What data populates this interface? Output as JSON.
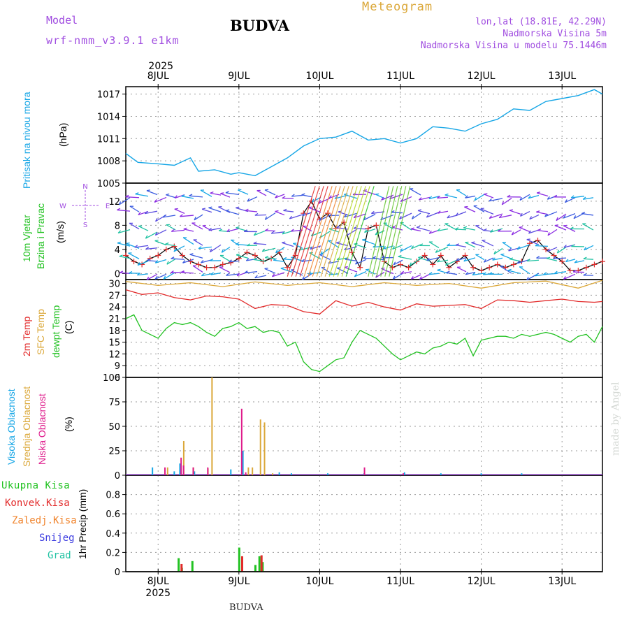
{
  "header": {
    "model_label": "Model",
    "model_name": "wrf-nmm_v3.9.1 e1km",
    "station": "BUDVA",
    "title": "Meteogram",
    "coords": "lon,lat (18.81E, 42.29N)",
    "elevation": "Nadmorska Visina 5m",
    "model_elevation": "Nadmorska Visina u modelu 75.1446m"
  },
  "footer": {
    "station": "BUDVA",
    "credit": "made by Angel"
  },
  "colors": {
    "pressure": "#16a6e6",
    "temp2m": "#e22a2a",
    "sfc": "#dba83a",
    "dewpt": "#22c222",
    "cloud_high": "#16a6e6",
    "cloud_mid": "#dba83a",
    "cloud_low": "#df1b8b",
    "precip_total": "#22c222",
    "precip_conv": "#e22a2a",
    "precip_frz": "#f0832b",
    "snow": "#3b3be0",
    "graupel": "#20c2a2"
  },
  "chart_data": {
    "type": "line",
    "x_axis": {
      "year": "2025",
      "tick_labels": [
        "8JUL",
        "9JUL",
        "10JUL",
        "11JUL",
        "12JUL",
        "13JUL"
      ],
      "range_days": [
        7.6,
        13.5
      ]
    },
    "panels": [
      {
        "name": "pressure",
        "labels": [
          "Pritisak na nivou mora",
          "(hPa)"
        ],
        "ylim": [
          1005,
          1018
        ],
        "yticks": [
          1005,
          1008,
          1011,
          1014,
          1017
        ],
        "series": [
          {
            "x": [
              7.6,
              7.75,
              8.0,
              8.2,
              8.4,
              8.5,
              8.7,
              8.9,
              9.0,
              9.2,
              9.4,
              9.6,
              9.8,
              10.0,
              10.2,
              10.4,
              10.6,
              10.8,
              11.0,
              11.2,
              11.4,
              11.6,
              11.8,
              12.0,
              12.2,
              12.4,
              12.6,
              12.8,
              13.0,
              13.2,
              13.4,
              13.5
            ],
            "y": [
              1009.0,
              1007.8,
              1007.6,
              1007.4,
              1008.4,
              1006.6,
              1006.8,
              1006.2,
              1006.4,
              1006.0,
              1007.2,
              1008.4,
              1010.0,
              1011.0,
              1011.2,
              1012.0,
              1010.8,
              1011.0,
              1010.4,
              1011.0,
              1012.6,
              1012.4,
              1012.0,
              1013.0,
              1013.6,
              1015.0,
              1014.8,
              1016.0,
              1016.4,
              1016.8,
              1017.6,
              1017.0
            ]
          }
        ]
      },
      {
        "name": "wind",
        "labels": [
          "10m Vjetar",
          "Brzina i Pravac",
          "(m/s)"
        ],
        "compass": [
          "N",
          "W",
          "E",
          "S"
        ],
        "ylim": [
          -1,
          15
        ],
        "yticks": [
          0,
          4,
          8,
          12
        ],
        "series": [
          {
            "x": [
              7.6,
              7.7,
              7.8,
              7.9,
              8.0,
              8.1,
              8.2,
              8.3,
              8.4,
              8.5,
              8.6,
              8.7,
              8.8,
              8.9,
              9.0,
              9.1,
              9.2,
              9.3,
              9.4,
              9.5,
              9.6,
              9.7,
              9.8,
              9.9,
              10.0,
              10.1,
              10.2,
              10.3,
              10.4,
              10.5,
              10.6,
              10.7,
              10.8,
              10.9,
              11.0,
              11.1,
              11.2,
              11.3,
              11.4,
              11.5,
              11.6,
              11.7,
              11.8,
              11.9,
              12.0,
              12.1,
              12.2,
              12.3,
              12.4,
              12.5,
              12.6,
              12.7,
              12.8,
              12.9,
              13.0,
              13.1,
              13.2,
              13.3,
              13.4,
              13.5
            ],
            "y": [
              3,
              2,
              1.5,
              2.5,
              3,
              4,
              4.5,
              3,
              2,
              1.5,
              1,
              1,
              1.5,
              1.8,
              2.5,
              3.5,
              3,
              2,
              2.5,
              3.5,
              1,
              3,
              10,
              12,
              9,
              10,
              7.5,
              8.5,
              3.5,
              1,
              7.5,
              8,
              2,
              1,
              1.5,
              1,
              2,
              3,
              1.5,
              3,
              1,
              2,
              3,
              1,
              0.5,
              1,
              1.5,
              1,
              1.5,
              2,
              5,
              5.5,
              4,
              3,
              2,
              0.5,
              0.5,
              1,
              1.5,
              2
            ]
          }
        ]
      },
      {
        "name": "temperature",
        "labels": [
          "2m Temp",
          "SFC Temp",
          "dewpt Temp",
          "(C)"
        ],
        "ylim": [
          6,
          31
        ],
        "yticks": [
          6,
          9,
          12,
          15,
          18,
          21,
          24,
          27,
          30
        ],
        "series": [
          {
            "name": "SFC Temp",
            "x": [
              7.6,
              8.0,
              8.4,
              8.8,
              9.2,
              9.6,
              10.0,
              10.4,
              10.8,
              11.2,
              11.6,
              12.0,
              12.4,
              12.8,
              13.2,
              13.5
            ],
            "y": [
              30.5,
              29.5,
              30.2,
              29.2,
              30.4,
              29.5,
              30.2,
              29.2,
              30.2,
              29.5,
              30.0,
              28.8,
              30.2,
              30.6,
              28.8,
              30.8
            ]
          },
          {
            "name": "2m Temp",
            "x": [
              7.6,
              7.8,
              8.0,
              8.2,
              8.4,
              8.6,
              8.8,
              9.0,
              9.2,
              9.4,
              9.6,
              9.8,
              10.0,
              10.2,
              10.4,
              10.6,
              10.8,
              11.0,
              11.2,
              11.4,
              11.6,
              11.8,
              12.0,
              12.2,
              12.4,
              12.6,
              12.8,
              13.0,
              13.2,
              13.4,
              13.5
            ],
            "y": [
              28.4,
              27.2,
              27.6,
              26.4,
              25.8,
              26.8,
              26.6,
              26.0,
              23.6,
              24.6,
              24.4,
              22.8,
              22.2,
              25.6,
              24.2,
              25.2,
              24.0,
              23.2,
              24.8,
              24.2,
              24.4,
              24.6,
              23.6,
              25.8,
              25.6,
              25.2,
              25.6,
              26.0,
              25.4,
              25.2,
              25.4
            ]
          },
          {
            "name": "dewpt Temp",
            "x": [
              7.6,
              7.7,
              7.8,
              7.9,
              8.0,
              8.1,
              8.2,
              8.3,
              8.4,
              8.5,
              8.6,
              8.7,
              8.8,
              8.9,
              9.0,
              9.1,
              9.2,
              9.3,
              9.4,
              9.5,
              9.6,
              9.7,
              9.8,
              9.9,
              10.0,
              10.1,
              10.2,
              10.3,
              10.4,
              10.5,
              10.6,
              10.7,
              10.8,
              10.9,
              11.0,
              11.1,
              11.2,
              11.3,
              11.4,
              11.5,
              11.6,
              11.7,
              11.8,
              11.9,
              12.0,
              12.1,
              12.2,
              12.3,
              12.4,
              12.5,
              12.6,
              12.7,
              12.8,
              12.9,
              13.0,
              13.1,
              13.2,
              13.3,
              13.4,
              13.5
            ],
            "y": [
              21,
              22,
              18,
              17,
              16,
              18.5,
              20,
              19.5,
              20,
              19,
              17.5,
              16.5,
              18.5,
              19,
              20,
              18.5,
              19,
              17.5,
              18,
              17.5,
              14,
              15,
              10,
              8,
              7.5,
              9,
              10.5,
              11,
              15,
              18,
              17,
              16,
              14,
              12,
              10.5,
              11.5,
              12.5,
              12,
              13.5,
              14,
              15,
              14.5,
              16,
              11.5,
              15.5,
              16,
              16.5,
              16.5,
              16,
              17,
              16.5,
              17,
              17.5,
              17,
              16,
              15,
              16.5,
              17,
              15,
              19
            ]
          }
        ]
      },
      {
        "name": "clouds",
        "labels": [
          "Visoka Oblacnost",
          "Srednja Oblacnost",
          "Niska Oblacnost",
          "(%)"
        ],
        "ylim": [
          0,
          100
        ],
        "yticks": [
          0,
          25,
          50,
          75,
          100
        ],
        "series": [
          {
            "name": "Visoka Oblacnost",
            "x": [
              7.93,
              8.2,
              8.27,
              8.45,
              8.9,
              9.05,
              9.5,
              9.65,
              10.1,
              10.55,
              11.05,
              11.5,
              12.0,
              12.5
            ],
            "y": [
              8,
              4,
              12,
              4,
              6,
              25,
              3,
              2,
              2,
              2,
              3,
              2,
              2,
              2
            ]
          },
          {
            "name": "Srednja Oblacnost",
            "x": [
              8.1,
              8.3,
              8.42,
              8.6,
              8.65,
              9.1,
              9.15,
              9.25,
              9.3,
              9.4
            ],
            "y": [
              8,
              35,
              8,
              7,
              100,
              8,
              8,
              57,
              54,
              2
            ]
          },
          {
            "name": "Niska Oblacnost",
            "x": [
              8.05,
              8.25,
              8.28,
              8.4,
              8.58,
              9.0,
              9.05,
              10.52,
              11.0
            ],
            "y": [
              8,
              18,
              10,
              8,
              8,
              68,
              3,
              8,
              2
            ]
          }
        ]
      },
      {
        "name": "precip",
        "labels": [
          "Ukupna Kisa",
          "Konvek.Kisa",
          "Zaledj.Kisa",
          "Snijeg",
          "Grad",
          "1hr Precip (mm)"
        ],
        "ylim": [
          0,
          1.0
        ],
        "yticks": [
          0,
          0.2,
          0.4,
          0.6,
          0.8
        ],
        "series": [
          {
            "name": "Ukupna Kisa",
            "x": [
              8.25,
              8.29,
              8.42,
              9.0,
              9.2,
              9.25,
              9.29
            ],
            "y": [
              0.14,
              0.04,
              0.11,
              0.25,
              0.07,
              0.16,
              0.1
            ]
          },
          {
            "name": "Konvek.Kisa",
            "x": [
              8.26,
              9.01,
              9.25
            ],
            "y": [
              0.08,
              0.16,
              0.17
            ]
          }
        ]
      }
    ]
  }
}
